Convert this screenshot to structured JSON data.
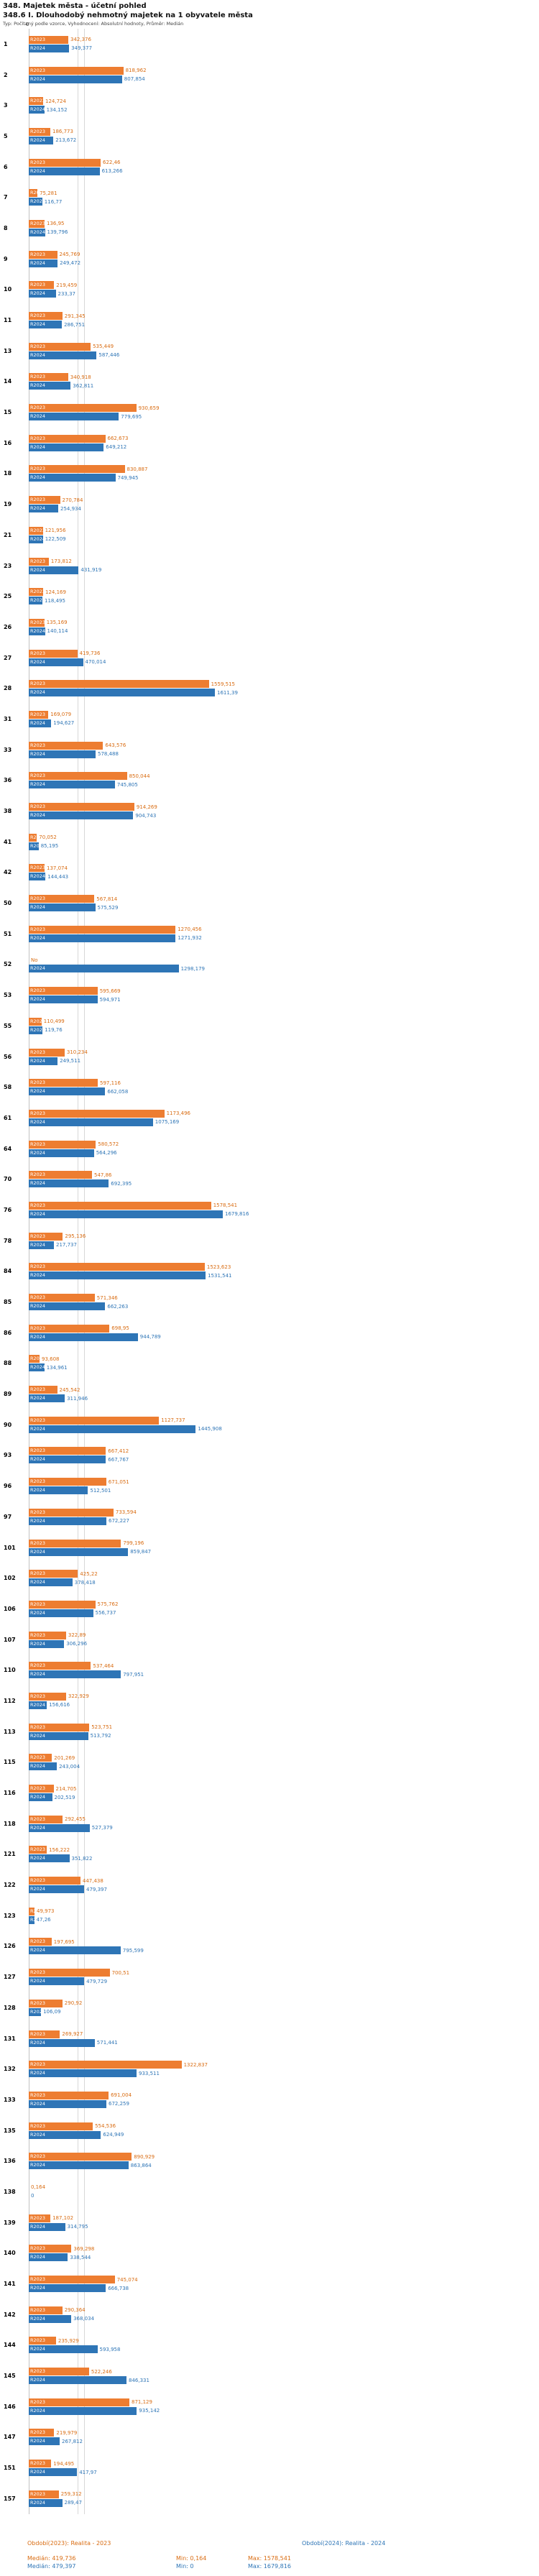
{
  "header": {
    "title": "348. Majetek města - účetní pohled",
    "subtitle": "348.6 I. Dlouhodobý nehmotný majetek na 1 obyvatele města",
    "meta": "Typ: Počítaný podle vzorce, Vyhodnocení: Absolutní hodnoty, Průměr: Medián"
  },
  "axis": {
    "zero_label": "0"
  },
  "legend": {
    "R2023": "R2023",
    "R2024": "R2024"
  },
  "footer": {
    "periods": [
      {
        "label": "Období(2023): Realita - 2023"
      },
      {
        "label": "Období(2024): Realita - 2024"
      }
    ],
    "stats_2023": {
      "median": "Medián: 419,736",
      "min": "Min: 0,164",
      "max": "Max: 1578,541"
    },
    "stats_2024": {
      "median": "Medián: 479,397",
      "min": "Min: 0",
      "max": "Max: 1679,816"
    }
  },
  "rows": [
    [
      "1",
      "342,376",
      "349,377"
    ],
    [
      "2",
      "818,962",
      "807,854"
    ],
    [
      "3",
      "124,724",
      "134,152"
    ],
    [
      "5",
      "186,773",
      "213,672"
    ],
    [
      "6",
      "622,46",
      "613,266"
    ],
    [
      "7",
      "75,281",
      "116,77"
    ],
    [
      "8",
      "136,95",
      "139,796"
    ],
    [
      "9",
      "245,769",
      "249,472"
    ],
    [
      "10",
      "219,459",
      "233,37"
    ],
    [
      "11",
      "291,345",
      "286,751"
    ],
    [
      "13",
      "535,449",
      "587,446"
    ],
    [
      "14",
      "340,918",
      "362,811"
    ],
    [
      "15",
      "930,659",
      "779,695"
    ],
    [
      "16",
      "662,673",
      "649,212"
    ],
    [
      "18",
      "830,887",
      "749,945"
    ],
    [
      "19",
      "270,784",
      "254,934"
    ],
    [
      "21",
      "121,956",
      "122,509"
    ],
    [
      "23",
      "173,812",
      "431,919"
    ],
    [
      "25",
      "124,169",
      "118,495"
    ],
    [
      "26",
      "135,169",
      "140,114"
    ],
    [
      "27",
      "419,736",
      "470,014"
    ],
    [
      "28",
      "1559,515",
      "1611,39"
    ],
    [
      "31",
      "169,079",
      "194,627"
    ],
    [
      "33",
      "643,576",
      "578,488"
    ],
    [
      "36",
      "850,044",
      "745,805"
    ],
    [
      "38",
      "914,269",
      "904,743"
    ],
    [
      "41",
      "70,052",
      "85,195"
    ],
    [
      "42",
      "137,074",
      "144,443"
    ],
    [
      "50",
      "567,814",
      "575,529"
    ],
    [
      "51",
      "1270,456",
      "1271,932"
    ],
    [
      "52",
      "No",
      "1298,179"
    ],
    [
      "53",
      "595,669",
      "594,971"
    ],
    [
      "55",
      "110,499",
      "119,76"
    ],
    [
      "56",
      "310,234",
      "249,511"
    ],
    [
      "58",
      "597,116",
      "662,058"
    ],
    [
      "61",
      "1173,496",
      "1075,169"
    ],
    [
      "64",
      "580,572",
      "564,296"
    ],
    [
      "70",
      "547,86",
      "692,395"
    ],
    [
      "76",
      "1578,541",
      "1679,816"
    ],
    [
      "78",
      "295,136",
      "217,737"
    ],
    [
      "84",
      "1523,623",
      "1531,541"
    ],
    [
      "85",
      "571,346",
      "662,263"
    ],
    [
      "86",
      "698,95",
      "944,789"
    ],
    [
      "88",
      "93,608",
      "134,961"
    ],
    [
      "89",
      "245,542",
      "311,946"
    ],
    [
      "90",
      "1127,737",
      "1445,908"
    ],
    [
      "93",
      "667,412",
      "667,767"
    ],
    [
      "96",
      "671,051",
      "512,501"
    ],
    [
      "97",
      "733,594",
      "672,227"
    ],
    [
      "101",
      "799,196",
      "859,847"
    ],
    [
      "102",
      "425,22",
      "378,418"
    ],
    [
      "106",
      "575,762",
      "556,737"
    ],
    [
      "107",
      "322,89",
      "306,296"
    ],
    [
      "110",
      "537,464",
      "797,951"
    ],
    [
      "112",
      "322,929",
      "156,616"
    ],
    [
      "113",
      "523,751",
      "513,792"
    ],
    [
      "115",
      "201,269",
      "243,004"
    ],
    [
      "116",
      "214,705",
      "202,519"
    ],
    [
      "118",
      "292,455",
      "527,379"
    ],
    [
      "121",
      "156,222",
      "351,822"
    ],
    [
      "122",
      "447,438",
      "479,397"
    ],
    [
      "123",
      "49,973",
      "47,26"
    ],
    [
      "126",
      "197,695",
      "795,599"
    ],
    [
      "127",
      "700,51",
      "479,729"
    ],
    [
      "128",
      "290,92",
      "106,09"
    ],
    [
      "131",
      "269,927",
      "571,441"
    ],
    [
      "132",
      "1322,837",
      "933,511"
    ],
    [
      "133",
      "691,004",
      "672,259"
    ],
    [
      "135",
      "554,536",
      "624,949"
    ],
    [
      "136",
      "890,929",
      "863,864"
    ],
    [
      "138",
      "0,164",
      "0"
    ],
    [
      "139",
      "187,102",
      "314,795"
    ],
    [
      "140",
      "369,298",
      "338,544"
    ],
    [
      "141",
      "745,074",
      "666,738"
    ],
    [
      "142",
      "290,364",
      "368,034"
    ],
    [
      "144",
      "235,929",
      "593,958"
    ],
    [
      "145",
      "522,246",
      "846,331"
    ],
    [
      "146",
      "871,129",
      "935,142"
    ],
    [
      "147",
      "219,979",
      "267,812"
    ],
    [
      "151",
      "194,495",
      "417,97"
    ],
    [
      "157",
      "259,312",
      "289,47"
    ]
  ],
  "chart_data": {
    "type": "bar",
    "orientation": "horizontal",
    "title": "348.6 I. Dlouhodobý nehmotný majetek na 1 obyvatele města",
    "xlabel": "",
    "ylabel": "",
    "xlim": [
      0,
      1700
    ],
    "grid": true,
    "legend_position": "bottom",
    "categories": [
      "1",
      "2",
      "3",
      "5",
      "6",
      "7",
      "8",
      "9",
      "10",
      "11",
      "13",
      "14",
      "15",
      "16",
      "18",
      "19",
      "21",
      "23",
      "25",
      "26",
      "27",
      "28",
      "31",
      "33",
      "36",
      "38",
      "41",
      "42",
      "50",
      "51",
      "52",
      "53",
      "55",
      "56",
      "58",
      "61",
      "64",
      "70",
      "76",
      "78",
      "84",
      "85",
      "86",
      "88",
      "89",
      "90",
      "93",
      "96",
      "97",
      "101",
      "102",
      "106",
      "107",
      "110",
      "112",
      "113",
      "115",
      "116",
      "118",
      "121",
      "122",
      "123",
      "126",
      "127",
      "128",
      "131",
      "132",
      "133",
      "135",
      "136",
      "138",
      "139",
      "140",
      "141",
      "142",
      "144",
      "145",
      "146",
      "147",
      "151",
      "157"
    ],
    "series": [
      {
        "name": "Realita - 2023",
        "color": "#ed7d31",
        "values": [
          342.376,
          818.962,
          124.724,
          186.773,
          622.46,
          75.281,
          136.95,
          245.769,
          219.459,
          291.345,
          535.449,
          340.918,
          930.659,
          662.673,
          830.887,
          270.784,
          121.956,
          173.812,
          124.169,
          135.169,
          419.736,
          1559.515,
          169.079,
          643.576,
          850.044,
          914.269,
          70.052,
          137.074,
          567.814,
          1270.456,
          null,
          595.669,
          110.499,
          310.234,
          597.116,
          1173.496,
          580.572,
          547.86,
          1578.541,
          295.136,
          1523.623,
          571.346,
          698.95,
          93.608,
          245.542,
          1127.737,
          667.412,
          671.051,
          733.594,
          799.196,
          425.22,
          575.762,
          322.89,
          537.464,
          322.929,
          523.751,
          201.269,
          214.705,
          292.455,
          156.222,
          447.438,
          49.973,
          197.695,
          700.51,
          290.92,
          269.927,
          1322.837,
          691.004,
          554.536,
          890.929,
          0.164,
          187.102,
          369.298,
          745.074,
          290.364,
          235.929,
          522.246,
          871.129,
          219.979,
          194.495,
          259.312
        ]
      },
      {
        "name": "Realita - 2024",
        "color": "#2e75b6",
        "values": [
          349.377,
          807.854,
          134.152,
          213.672,
          613.266,
          116.77,
          139.796,
          249.472,
          233.37,
          286.751,
          587.446,
          362.811,
          779.695,
          649.212,
          749.945,
          254.934,
          122.509,
          431.919,
          118.495,
          140.114,
          470.014,
          1611.39,
          194.627,
          578.488,
          745.805,
          904.743,
          85.195,
          144.443,
          575.529,
          1271.932,
          1298.179,
          594.971,
          119.76,
          249.511,
          662.058,
          1075.169,
          564.296,
          692.395,
          1679.816,
          217.737,
          1531.541,
          662.263,
          944.789,
          134.961,
          311.946,
          1445.908,
          667.767,
          512.501,
          672.227,
          859.847,
          378.418,
          556.737,
          306.296,
          797.951,
          156.616,
          513.792,
          243.004,
          202.519,
          527.379,
          351.822,
          479.397,
          47.26,
          795.599,
          479.729,
          106.09,
          571.441,
          933.511,
          672.259,
          624.949,
          863.864,
          0,
          314.795,
          338.544,
          666.738,
          368.034,
          593.958,
          846.331,
          935.142,
          267.812,
          417.97,
          289.47
        ]
      }
    ],
    "stats": {
      "median_2023": 419.736,
      "median_2024": 479.397,
      "min_2023": 0.164,
      "min_2024": 0,
      "max_2023": 1578.541,
      "max_2024": 1679.816
    }
  }
}
